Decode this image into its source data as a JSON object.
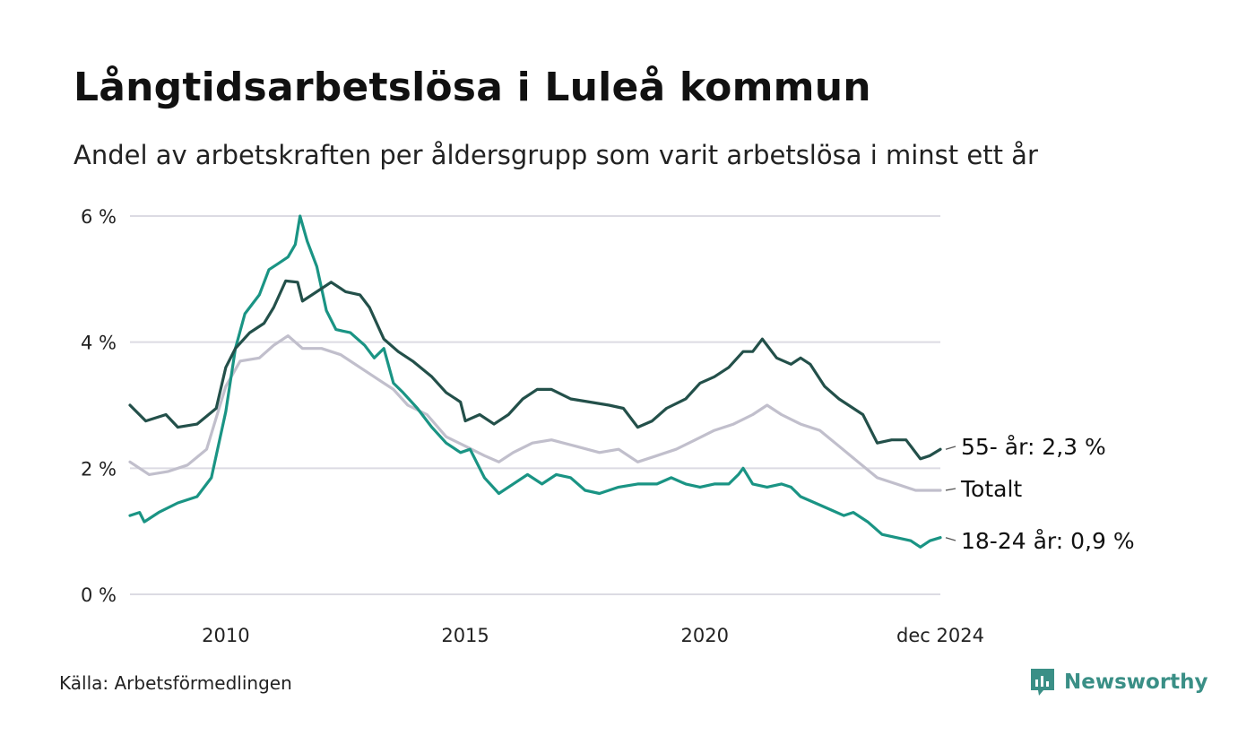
{
  "title": "Långtidsarbetslösa i Luleå kommun",
  "subtitle": "Andel av arbetskraften per åldersgrupp som varit arbetslösa i minst ett år",
  "source": "Källa: Arbetsförmedlingen",
  "brand": {
    "name": "Newsworthy",
    "icon": "newsworthy-logo-icon",
    "color": "#3a8f86"
  },
  "chart_data": {
    "type": "line",
    "title": "Långtidsarbetslösa i Luleå kommun",
    "xlabel": "",
    "ylabel": "",
    "xlim": [
      2008.0,
      2024.917
    ],
    "ylim": [
      0,
      6
    ],
    "grid": true,
    "y_ticks": [
      0,
      2,
      4,
      6
    ],
    "y_tick_labels": [
      "0 %",
      "2 %",
      "4 %",
      "6 %"
    ],
    "x_ticks": [
      2010,
      2015,
      2020,
      2024.917
    ],
    "x_tick_labels": [
      "2010",
      "2015",
      "2020",
      "dec 2024"
    ],
    "series": [
      {
        "name": "55- år",
        "end_label": "55- år: 2,3 %",
        "color": "#23504a",
        "points": [
          [
            2008.0,
            3.0
          ],
          [
            2008.33,
            2.75
          ],
          [
            2008.75,
            2.85
          ],
          [
            2009.0,
            2.65
          ],
          [
            2009.4,
            2.7
          ],
          [
            2009.8,
            2.95
          ],
          [
            2010.0,
            3.6
          ],
          [
            2010.2,
            3.9
          ],
          [
            2010.5,
            4.15
          ],
          [
            2010.8,
            4.3
          ],
          [
            2011.0,
            4.55
          ],
          [
            2011.25,
            4.97
          ],
          [
            2011.5,
            4.95
          ],
          [
            2011.6,
            4.65
          ],
          [
            2011.9,
            4.8
          ],
          [
            2012.2,
            4.95
          ],
          [
            2012.5,
            4.8
          ],
          [
            2012.8,
            4.75
          ],
          [
            2013.0,
            4.55
          ],
          [
            2013.3,
            4.05
          ],
          [
            2013.6,
            3.85
          ],
          [
            2013.9,
            3.7
          ],
          [
            2014.3,
            3.45
          ],
          [
            2014.6,
            3.2
          ],
          [
            2014.9,
            3.05
          ],
          [
            2015.0,
            2.75
          ],
          [
            2015.3,
            2.85
          ],
          [
            2015.6,
            2.7
          ],
          [
            2015.9,
            2.85
          ],
          [
            2016.2,
            3.1
          ],
          [
            2016.5,
            3.25
          ],
          [
            2016.8,
            3.25
          ],
          [
            2017.2,
            3.1
          ],
          [
            2017.6,
            3.05
          ],
          [
            2018.0,
            3.0
          ],
          [
            2018.3,
            2.95
          ],
          [
            2018.6,
            2.65
          ],
          [
            2018.9,
            2.75
          ],
          [
            2019.2,
            2.95
          ],
          [
            2019.6,
            3.1
          ],
          [
            2019.9,
            3.35
          ],
          [
            2020.2,
            3.45
          ],
          [
            2020.5,
            3.6
          ],
          [
            2020.8,
            3.85
          ],
          [
            2021.0,
            3.85
          ],
          [
            2021.2,
            4.05
          ],
          [
            2021.5,
            3.75
          ],
          [
            2021.8,
            3.65
          ],
          [
            2022.0,
            3.75
          ],
          [
            2022.2,
            3.65
          ],
          [
            2022.5,
            3.3
          ],
          [
            2022.8,
            3.1
          ],
          [
            2023.0,
            3.0
          ],
          [
            2023.3,
            2.85
          ],
          [
            2023.6,
            2.4
          ],
          [
            2023.9,
            2.45
          ],
          [
            2024.2,
            2.45
          ],
          [
            2024.5,
            2.15
          ],
          [
            2024.7,
            2.2
          ],
          [
            2024.917,
            2.3
          ]
        ]
      },
      {
        "name": "Totalt",
        "end_label": "Totalt",
        "color": "#c1bfcc",
        "points": [
          [
            2008.0,
            2.1
          ],
          [
            2008.4,
            1.9
          ],
          [
            2008.8,
            1.95
          ],
          [
            2009.2,
            2.05
          ],
          [
            2009.6,
            2.3
          ],
          [
            2010.0,
            3.3
          ],
          [
            2010.3,
            3.7
          ],
          [
            2010.7,
            3.75
          ],
          [
            2011.0,
            3.95
          ],
          [
            2011.3,
            4.1
          ],
          [
            2011.6,
            3.9
          ],
          [
            2012.0,
            3.9
          ],
          [
            2012.4,
            3.8
          ],
          [
            2012.8,
            3.6
          ],
          [
            2013.2,
            3.4
          ],
          [
            2013.5,
            3.25
          ],
          [
            2013.8,
            3.0
          ],
          [
            2014.2,
            2.85
          ],
          [
            2014.6,
            2.5
          ],
          [
            2015.0,
            2.35
          ],
          [
            2015.4,
            2.2
          ],
          [
            2015.7,
            2.1
          ],
          [
            2016.0,
            2.25
          ],
          [
            2016.4,
            2.4
          ],
          [
            2016.8,
            2.45
          ],
          [
            2017.3,
            2.35
          ],
          [
            2017.8,
            2.25
          ],
          [
            2018.2,
            2.3
          ],
          [
            2018.6,
            2.1
          ],
          [
            2019.0,
            2.2
          ],
          [
            2019.4,
            2.3
          ],
          [
            2019.8,
            2.45
          ],
          [
            2020.2,
            2.6
          ],
          [
            2020.6,
            2.7
          ],
          [
            2021.0,
            2.85
          ],
          [
            2021.3,
            3.0
          ],
          [
            2021.6,
            2.85
          ],
          [
            2022.0,
            2.7
          ],
          [
            2022.4,
            2.6
          ],
          [
            2022.8,
            2.35
          ],
          [
            2023.2,
            2.1
          ],
          [
            2023.6,
            1.85
          ],
          [
            2024.0,
            1.75
          ],
          [
            2024.4,
            1.65
          ],
          [
            2024.917,
            1.65
          ]
        ]
      },
      {
        "name": "18-24 år",
        "end_label": "18-24 år: 0,9 %",
        "color": "#1a9484",
        "points": [
          [
            2008.0,
            1.25
          ],
          [
            2008.2,
            1.3
          ],
          [
            2008.3,
            1.15
          ],
          [
            2008.6,
            1.3
          ],
          [
            2009.0,
            1.45
          ],
          [
            2009.4,
            1.55
          ],
          [
            2009.7,
            1.85
          ],
          [
            2010.0,
            2.9
          ],
          [
            2010.2,
            3.9
          ],
          [
            2010.4,
            4.45
          ],
          [
            2010.7,
            4.75
          ],
          [
            2010.9,
            5.15
          ],
          [
            2011.1,
            5.25
          ],
          [
            2011.3,
            5.35
          ],
          [
            2011.45,
            5.55
          ],
          [
            2011.55,
            6.0
          ],
          [
            2011.7,
            5.6
          ],
          [
            2011.9,
            5.2
          ],
          [
            2012.1,
            4.5
          ],
          [
            2012.3,
            4.2
          ],
          [
            2012.6,
            4.15
          ],
          [
            2012.9,
            3.95
          ],
          [
            2013.1,
            3.75
          ],
          [
            2013.3,
            3.9
          ],
          [
            2013.5,
            3.35
          ],
          [
            2013.7,
            3.2
          ],
          [
            2014.0,
            2.95
          ],
          [
            2014.3,
            2.65
          ],
          [
            2014.6,
            2.4
          ],
          [
            2014.9,
            2.25
          ],
          [
            2015.1,
            2.3
          ],
          [
            2015.4,
            1.85
          ],
          [
            2015.7,
            1.6
          ],
          [
            2016.0,
            1.75
          ],
          [
            2016.3,
            1.9
          ],
          [
            2016.6,
            1.75
          ],
          [
            2016.9,
            1.9
          ],
          [
            2017.2,
            1.85
          ],
          [
            2017.5,
            1.65
          ],
          [
            2017.8,
            1.6
          ],
          [
            2018.2,
            1.7
          ],
          [
            2018.6,
            1.75
          ],
          [
            2019.0,
            1.75
          ],
          [
            2019.3,
            1.85
          ],
          [
            2019.6,
            1.75
          ],
          [
            2019.9,
            1.7
          ],
          [
            2020.2,
            1.75
          ],
          [
            2020.5,
            1.75
          ],
          [
            2020.7,
            1.9
          ],
          [
            2020.8,
            2.0
          ],
          [
            2021.0,
            1.75
          ],
          [
            2021.3,
            1.7
          ],
          [
            2021.6,
            1.75
          ],
          [
            2021.8,
            1.7
          ],
          [
            2022.0,
            1.55
          ],
          [
            2022.3,
            1.45
          ],
          [
            2022.6,
            1.35
          ],
          [
            2022.9,
            1.25
          ],
          [
            2023.1,
            1.3
          ],
          [
            2023.4,
            1.15
          ],
          [
            2023.7,
            0.95
          ],
          [
            2024.0,
            0.9
          ],
          [
            2024.3,
            0.85
          ],
          [
            2024.5,
            0.75
          ],
          [
            2024.7,
            0.85
          ],
          [
            2024.917,
            0.9
          ]
        ]
      }
    ]
  }
}
